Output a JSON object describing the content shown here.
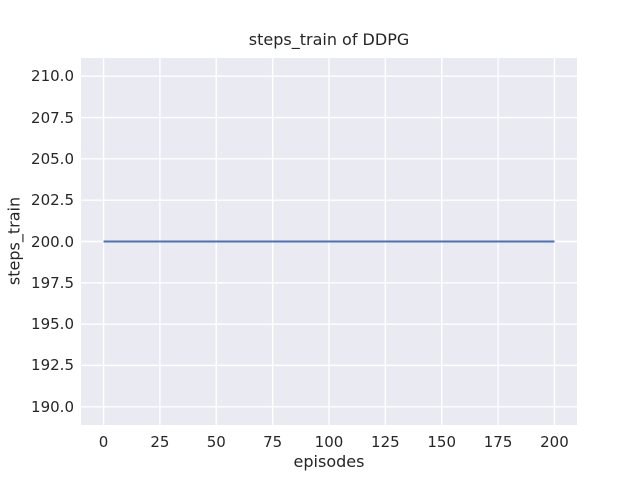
{
  "figure": {
    "background": "#ffffff",
    "plot_background": "#eaeaf2",
    "grid_color": "#ffffff",
    "text_color": "#262626"
  },
  "chart_data": {
    "type": "line",
    "title": "steps_train of DDPG",
    "xlabel": "episodes",
    "ylabel": "steps_train",
    "grid": true,
    "legend_position": "none",
    "xlim": [
      -10,
      210
    ],
    "ylim": [
      188.9,
      211.1
    ],
    "x_tick_values": [
      0,
      25,
      50,
      75,
      100,
      125,
      150,
      175,
      200
    ],
    "x_tick_labels": [
      "0",
      "25",
      "50",
      "75",
      "100",
      "125",
      "150",
      "175",
      "200"
    ],
    "y_tick_values": [
      190.0,
      192.5,
      195.0,
      197.5,
      200.0,
      202.5,
      205.0,
      207.5,
      210.0
    ],
    "y_tick_labels": [
      "190.0",
      "192.5",
      "195.0",
      "197.5",
      "200.0",
      "202.5",
      "205.0",
      "207.5",
      "210.0"
    ],
    "series": [
      {
        "name": "steps_train",
        "color": "#4c72b0",
        "line_width": 2,
        "constant_value": 200,
        "x": [
          0,
          200
        ],
        "y": [
          200,
          200
        ]
      }
    ]
  }
}
